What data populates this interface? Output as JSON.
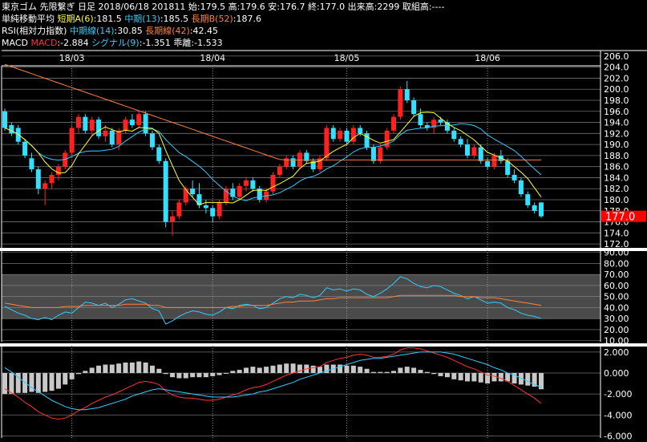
{
  "header": {
    "line1_parts": [
      {
        "text": "東京ゴム 先限繋ぎ 日足 2018/06/18 201811 始:179.5 高:179.6 安:176.7 終:177.0 出来高:2299 取組高:----",
        "color": "#ffffff"
      }
    ],
    "line2_parts": [
      {
        "text": "単純移動平均 ",
        "color": "#ffffff"
      },
      {
        "text": "短期A(6)",
        "color": "#ffff33"
      },
      {
        "text": ":181.5 ",
        "color": "#ffffff"
      },
      {
        "text": "中期(13)",
        "color": "#33ccff"
      },
      {
        "text": ":185.5 ",
        "color": "#ffffff"
      },
      {
        "text": "長期B(52)",
        "color": "#ff8040"
      },
      {
        "text": ":187.6",
        "color": "#ffffff"
      }
    ],
    "line3_parts": [
      {
        "text": "RSI(相対力指数) ",
        "color": "#ffffff"
      },
      {
        "text": "中期線(14)",
        "color": "#33ccff"
      },
      {
        "text": ":30.85 ",
        "color": "#ffffff"
      },
      {
        "text": "長期線(42)",
        "color": "#ff8040"
      },
      {
        "text": ":42.45",
        "color": "#ffffff"
      }
    ],
    "line4_parts": [
      {
        "text": "MACD ",
        "color": "#ffffff"
      },
      {
        "text": "MACD",
        "color": "#ff3333"
      },
      {
        "text": ":-2.884 ",
        "color": "#ffffff"
      },
      {
        "text": "シグナル(9)",
        "color": "#33ccff"
      },
      {
        "text": ":-1.351 ",
        "color": "#ffffff"
      },
      {
        "text": "乖離",
        "color": "#ffffff"
      },
      {
        "text": ":-1.533",
        "color": "#ffffff"
      }
    ]
  },
  "colors": {
    "up": "#ff2020",
    "down": "#33e0ff",
    "ma_short": "#ffff33",
    "ma_mid": "#33ccff",
    "ma_long": "#ff8040",
    "last_price_bg": "#ff0000",
    "histogram": "#c8c8c8",
    "rsi_band": "#4a4a4a"
  },
  "chart_data": [
    {
      "type": "candlestick",
      "x_labels": [
        "18/03",
        "18/04",
        "18/05",
        "18/06"
      ],
      "x_label_index": [
        10,
        31,
        51,
        72
      ],
      "ylim": [
        171,
        207
      ],
      "y_ticks": [
        "206.0",
        "204.0",
        "202.0",
        "200.0",
        "198.0",
        "196.0",
        "194.0",
        "192.0",
        "190.0",
        "188.0",
        "186.0",
        "184.0",
        "182.0",
        "180.0",
        "178.0",
        "176.0",
        "174.0",
        "172.0"
      ],
      "last_price": "177.0",
      "ohlc": [
        [
          196.0,
          196.5,
          192.5,
          193.0
        ],
        [
          193.5,
          194.0,
          191.5,
          192.0
        ],
        [
          193.0,
          193.5,
          190.0,
          190.5
        ],
        [
          190.5,
          191.0,
          187.5,
          188.0
        ],
        [
          187.5,
          188.5,
          185.0,
          185.5
        ],
        [
          185.5,
          186.0,
          181.0,
          182.0
        ],
        [
          182.0,
          183.5,
          179.0,
          183.0
        ],
        [
          183.0,
          185.0,
          182.0,
          184.5
        ],
        [
          184.5,
          186.5,
          183.5,
          186.0
        ],
        [
          186.0,
          189.0,
          185.5,
          188.5
        ],
        [
          188.5,
          193.5,
          188.0,
          193.0
        ],
        [
          193.0,
          195.5,
          192.0,
          195.0
        ],
        [
          195.0,
          195.5,
          192.0,
          192.5
        ],
        [
          192.5,
          195.0,
          191.5,
          194.5
        ],
        [
          194.5,
          195.0,
          191.0,
          191.5
        ],
        [
          191.5,
          193.5,
          190.5,
          192.5
        ],
        [
          192.5,
          193.0,
          189.5,
          190.0
        ],
        [
          190.0,
          193.0,
          189.0,
          192.5
        ],
        [
          192.5,
          195.0,
          192.0,
          194.5
        ],
        [
          194.5,
          195.5,
          193.0,
          193.5
        ],
        [
          193.5,
          196.0,
          193.0,
          195.5
        ],
        [
          195.5,
          196.0,
          191.5,
          192.0
        ],
        [
          192.0,
          192.5,
          189.0,
          189.5
        ],
        [
          189.5,
          190.0,
          186.5,
          187.0
        ],
        [
          187.0,
          187.5,
          175.0,
          176.0
        ],
        [
          176.0,
          178.0,
          173.5,
          177.0
        ],
        [
          177.0,
          180.0,
          176.5,
          179.5
        ],
        [
          179.5,
          182.5,
          179.0,
          182.0
        ],
        [
          182.0,
          183.5,
          180.5,
          181.0
        ],
        [
          181.0,
          183.0,
          178.5,
          179.0
        ],
        [
          179.0,
          180.0,
          177.5,
          178.5
        ],
        [
          178.5,
          179.0,
          176.0,
          177.0
        ],
        [
          177.0,
          180.0,
          176.5,
          179.5
        ],
        [
          179.5,
          182.5,
          179.0,
          182.0
        ],
        [
          182.0,
          183.0,
          180.0,
          180.5
        ],
        [
          180.5,
          183.0,
          180.0,
          182.5
        ],
        [
          182.5,
          184.0,
          181.5,
          183.5
        ],
        [
          183.5,
          184.0,
          181.5,
          182.0
        ],
        [
          182.0,
          182.5,
          179.5,
          180.0
        ],
        [
          180.0,
          182.0,
          179.5,
          181.5
        ],
        [
          181.5,
          185.0,
          181.0,
          184.5
        ],
        [
          184.5,
          186.5,
          184.0,
          186.0
        ],
        [
          186.0,
          188.0,
          185.5,
          187.5
        ],
        [
          187.5,
          188.0,
          185.5,
          186.0
        ],
        [
          186.0,
          189.0,
          185.5,
          188.5
        ],
        [
          188.5,
          189.0,
          186.5,
          187.0
        ],
        [
          187.0,
          187.5,
          185.0,
          185.5
        ],
        [
          185.5,
          188.0,
          185.0,
          187.5
        ],
        [
          187.5,
          193.5,
          187.0,
          193.0
        ],
        [
          193.0,
          193.5,
          190.5,
          191.0
        ],
        [
          191.0,
          193.0,
          190.5,
          192.5
        ],
        [
          192.5,
          193.0,
          190.0,
          190.5
        ],
        [
          190.5,
          193.5,
          190.0,
          193.0
        ],
        [
          193.0,
          193.5,
          191.5,
          192.0
        ],
        [
          192.0,
          192.5,
          189.0,
          189.5
        ],
        [
          189.5,
          190.0,
          186.5,
          187.0
        ],
        [
          187.0,
          190.0,
          186.5,
          189.5
        ],
        [
          189.5,
          193.0,
          189.0,
          192.5
        ],
        [
          192.5,
          195.5,
          192.0,
          195.0
        ],
        [
          195.0,
          200.5,
          194.5,
          200.0
        ],
        [
          200.0,
          201.5,
          197.5,
          198.0
        ],
        [
          198.0,
          198.5,
          195.0,
          195.5
        ],
        [
          195.5,
          196.5,
          193.0,
          193.5
        ],
        [
          193.5,
          194.0,
          192.5,
          193.0
        ],
        [
          193.0,
          195.0,
          192.0,
          194.5
        ],
        [
          194.5,
          195.0,
          193.5,
          194.0
        ],
        [
          194.0,
          194.5,
          192.0,
          192.5
        ],
        [
          192.5,
          193.0,
          190.5,
          191.0
        ],
        [
          191.0,
          191.5,
          189.5,
          190.0
        ],
        [
          190.0,
          191.0,
          187.5,
          188.0
        ],
        [
          188.0,
          190.0,
          187.5,
          189.5
        ],
        [
          189.5,
          190.0,
          186.5,
          187.0
        ],
        [
          187.0,
          187.5,
          185.5,
          186.0
        ],
        [
          186.0,
          188.5,
          185.5,
          188.0
        ],
        [
          188.0,
          189.0,
          186.5,
          187.0
        ],
        [
          187.0,
          187.5,
          184.0,
          184.5
        ],
        [
          184.5,
          185.5,
          183.0,
          183.5
        ],
        [
          183.5,
          184.0,
          180.5,
          181.0
        ],
        [
          181.0,
          181.5,
          178.5,
          179.0
        ],
        [
          179.0,
          179.5,
          177.5,
          178.0
        ],
        [
          179.5,
          179.6,
          176.7,
          177.0
        ]
      ]
    },
    {
      "type": "line",
      "title": "RSI",
      "ylim": [
        9,
        92
      ],
      "y_ticks": [
        "90.00",
        "80.00",
        "70.00",
        "60.00",
        "50.00",
        "40.00",
        "30.00",
        "20.00",
        "10.00"
      ],
      "band": [
        30,
        70
      ],
      "series": [
        {
          "name": "中期線(14)",
          "color": "#33ccff",
          "values": [
            41,
            38,
            35,
            33,
            30,
            29,
            31,
            29,
            33,
            36,
            35,
            40,
            45,
            44,
            42,
            44,
            40,
            43,
            47,
            48,
            46,
            44,
            39,
            37,
            25,
            28,
            32,
            35,
            37,
            36,
            34,
            33,
            36,
            40,
            39,
            42,
            43,
            42,
            39,
            40,
            44,
            48,
            50,
            49,
            52,
            51,
            49,
            51,
            58,
            56,
            57,
            55,
            57,
            56,
            52,
            50,
            53,
            57,
            62,
            68,
            66,
            62,
            59,
            58,
            60,
            59,
            56,
            53,
            51,
            48,
            50,
            47,
            44,
            45,
            44,
            40,
            38,
            35,
            33,
            32,
            30
          ]
        },
        {
          "name": "長期線(42)",
          "color": "#ff8040",
          "values": [
            44,
            43,
            42,
            41,
            40,
            40,
            40,
            40,
            40,
            41,
            41,
            41,
            42,
            42,
            42,
            42,
            42,
            42,
            43,
            43,
            43,
            43,
            42,
            42,
            40,
            40,
            40,
            40,
            40,
            40,
            40,
            40,
            40,
            40,
            41,
            41,
            42,
            42,
            42,
            42,
            43,
            44,
            45,
            45,
            46,
            46,
            46,
            47,
            48,
            48,
            49,
            49,
            49,
            49,
            49,
            49,
            49,
            49,
            50,
            51,
            51,
            51,
            51,
            51,
            51,
            51,
            51,
            51,
            50,
            50,
            50,
            49,
            49,
            49,
            48,
            47,
            46,
            45,
            44,
            43,
            42
          ]
        }
      ]
    },
    {
      "type": "bar+line",
      "title": "MACD",
      "ylim": [
        -6.2,
        2.6
      ],
      "y_ticks": [
        {
          "v": 2,
          "t": "2.000"
        },
        {
          "v": 0,
          "t": "0.000"
        },
        {
          "v": -2,
          "t": "-2.000"
        },
        {
          "v": -4,
          "t": "-4.000"
        },
        {
          "v": -6,
          "t": "-6.000"
        }
      ],
      "series": [
        {
          "name": "MACD",
          "color": "#ff3333",
          "values": [
            -1.5,
            -1.9,
            -2.3,
            -2.8,
            -3.2,
            -3.7,
            -4.0,
            -4.3,
            -4.4,
            -4.3,
            -4.0,
            -3.6,
            -3.3,
            -2.9,
            -2.6,
            -2.3,
            -2.1,
            -1.8,
            -1.5,
            -1.2,
            -0.9,
            -0.8,
            -0.9,
            -1.1,
            -1.7,
            -2.1,
            -2.3,
            -2.4,
            -2.4,
            -2.5,
            -2.6,
            -2.6,
            -2.5,
            -2.3,
            -2.1,
            -1.9,
            -1.6,
            -1.4,
            -1.3,
            -1.1,
            -0.8,
            -0.5,
            -0.2,
            0.0,
            0.2,
            0.4,
            0.5,
            0.6,
            1.0,
            1.2,
            1.4,
            1.5,
            1.7,
            1.8,
            1.7,
            1.5,
            1.5,
            1.6,
            1.8,
            2.2,
            2.4,
            2.4,
            2.3,
            2.1,
            1.9,
            1.7,
            1.5,
            1.2,
            0.9,
            0.6,
            0.4,
            0.1,
            -0.2,
            -0.3,
            -0.5,
            -0.8,
            -1.2,
            -1.6,
            -2.0,
            -2.4,
            -2.9
          ]
        },
        {
          "name": "シグナル(9)",
          "color": "#33ccff",
          "values": [
            0.5,
            0.1,
            -0.4,
            -0.9,
            -1.4,
            -1.8,
            -2.2,
            -2.6,
            -2.9,
            -3.2,
            -3.4,
            -3.5,
            -3.5,
            -3.4,
            -3.3,
            -3.1,
            -2.9,
            -2.7,
            -2.5,
            -2.2,
            -2.0,
            -1.8,
            -1.6,
            -1.5,
            -1.6,
            -1.7,
            -1.8,
            -1.9,
            -2.0,
            -2.1,
            -2.2,
            -2.3,
            -2.3,
            -2.3,
            -2.3,
            -2.2,
            -2.1,
            -2.0,
            -1.8,
            -1.7,
            -1.5,
            -1.3,
            -1.1,
            -0.9,
            -0.6,
            -0.4,
            -0.2,
            0.0,
            0.2,
            0.4,
            0.6,
            0.8,
            1.0,
            1.2,
            1.3,
            1.4,
            1.4,
            1.5,
            1.6,
            1.7,
            1.8,
            1.9,
            2.0,
            2.0,
            2.0,
            2.0,
            1.9,
            1.8,
            1.6,
            1.4,
            1.2,
            1.0,
            0.8,
            0.5,
            0.3,
            0.0,
            -0.2,
            -0.5,
            -0.8,
            -1.1,
            -1.35
          ]
        }
      ]
    }
  ]
}
